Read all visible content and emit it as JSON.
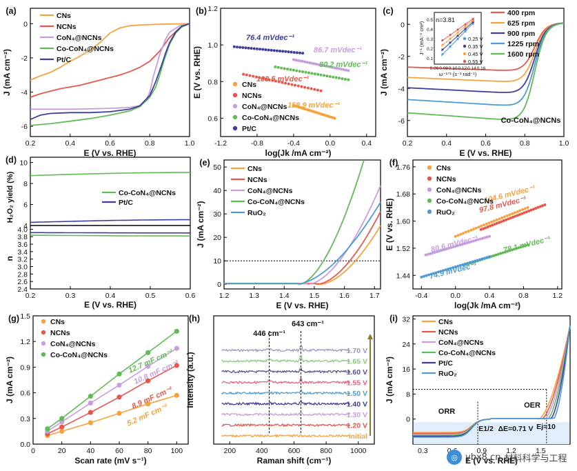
{
  "watermark": {
    "text": "ybx8.cn",
    "brand": "材料科学与工程"
  },
  "chart_data": [
    {
      "id": "a",
      "type": "line",
      "label": "(a)",
      "xlabel": "E (V vs. RHE)",
      "ylabel": "J (mA cm⁻²)",
      "xlim": [
        0.2,
        1.0
      ],
      "ylim": [
        -6.6,
        0.9
      ],
      "xticks": [
        "0.2",
        "0.4",
        "0.6",
        "0.8",
        "1.0"
      ],
      "yticks": [
        "0",
        "-2",
        "-4",
        "-6"
      ],
      "series": [
        {
          "name": "CNs",
          "color": "#f7a23b",
          "x": [
            0.2,
            0.25,
            0.3,
            0.35,
            0.4,
            0.45,
            0.5,
            0.55,
            0.6,
            0.65,
            0.7,
            0.75,
            0.8,
            0.85,
            0.9,
            0.95,
            1.0
          ],
          "y": [
            -3.3,
            -3.05,
            -2.85,
            -2.55,
            -2.2,
            -1.9,
            -1.55,
            -1.1,
            -0.55,
            -0.25,
            -0.12,
            -0.08,
            -0.05,
            -0.03,
            -0.02,
            -0.01,
            0
          ]
        },
        {
          "name": "NCNs",
          "color": "#e8564a",
          "x": [
            0.2,
            0.25,
            0.3,
            0.35,
            0.4,
            0.45,
            0.5,
            0.55,
            0.6,
            0.65,
            0.7,
            0.75,
            0.8,
            0.85,
            0.9,
            0.95,
            1.0
          ],
          "y": [
            -4.3,
            -4.1,
            -3.95,
            -3.8,
            -3.7,
            -3.6,
            -3.45,
            -3.3,
            -3.15,
            -3.0,
            -2.8,
            -2.55,
            -2.2,
            -1.6,
            -0.8,
            -0.25,
            0
          ]
        },
        {
          "name": "CoN₄@NCNs",
          "color": "#c69ee0",
          "x": [
            0.2,
            0.3,
            0.4,
            0.5,
            0.6,
            0.7,
            0.75,
            0.78,
            0.8,
            0.82,
            0.85,
            0.88,
            0.9,
            0.95,
            1.0
          ],
          "y": [
            -5.0,
            -5.0,
            -5.0,
            -4.98,
            -4.95,
            -4.9,
            -4.8,
            -4.5,
            -4.0,
            -3.0,
            -1.8,
            -0.9,
            -0.5,
            -0.12,
            0
          ]
        },
        {
          "name": "Co-CoN₄@NCNs",
          "color": "#61bb55",
          "x": [
            0.2,
            0.3,
            0.4,
            0.5,
            0.6,
            0.7,
            0.75,
            0.8,
            0.83,
            0.85,
            0.87,
            0.9,
            0.93,
            0.96,
            1.0
          ],
          "y": [
            -5.95,
            -5.85,
            -5.7,
            -5.55,
            -5.35,
            -5.1,
            -4.85,
            -4.3,
            -3.7,
            -3.0,
            -2.2,
            -1.2,
            -0.55,
            -0.2,
            0
          ]
        },
        {
          "name": "Pt/C",
          "color": "#3d3d9c",
          "x": [
            0.2,
            0.25,
            0.3,
            0.4,
            0.5,
            0.6,
            0.7,
            0.75,
            0.8,
            0.83,
            0.86,
            0.88,
            0.9,
            0.93,
            0.96,
            1.0
          ],
          "y": [
            -5.6,
            -5.35,
            -5.25,
            -5.2,
            -5.2,
            -5.15,
            -5.0,
            -4.8,
            -4.2,
            -3.4,
            -2.4,
            -1.7,
            -1.1,
            -0.5,
            -0.15,
            0
          ]
        }
      ]
    },
    {
      "id": "b",
      "type": "scatter",
      "label": "(b)",
      "xlabel": "log(Jk /mA cm⁻²)",
      "ylabel": "E (V vs. RHE)",
      "xlim": [
        -1.2,
        0.5
      ],
      "ylim": [
        0.5,
        1.2
      ],
      "xticks": [
        "-1.2",
        "-0.8",
        "-0.4",
        "0.0",
        "0.4"
      ],
      "yticks": [
        "0.6",
        "0.8",
        "1.0",
        "1.2"
      ],
      "series": [
        {
          "name": "CNs",
          "color": "#f7a23b",
          "slope_label": "158.9 mVdec⁻¹",
          "x0": -0.4,
          "x1": 0.05,
          "y0": 0.67,
          "y1": 0.6
        },
        {
          "name": "NCNs",
          "color": "#e8564a",
          "slope_label": "103.5 mVdec⁻¹",
          "x0": -0.95,
          "x1": -0.1,
          "y0": 0.84,
          "y1": 0.75
        },
        {
          "name": "CoN₄@NCNs",
          "color": "#c69ee0",
          "slope_label": "86.7 mVdec⁻¹",
          "x0": -0.4,
          "x1": 0.2,
          "y0": 0.92,
          "y1": 0.86
        },
        {
          "name": "Co-CoN₄@NCNs",
          "color": "#61bb55",
          "slope_label": "80.2 mVdec⁻¹",
          "x0": -0.6,
          "x1": 0.2,
          "y0": 0.88,
          "y1": 0.81
        },
        {
          "name": "Pt/C",
          "color": "#3d3d9c",
          "slope_label": "76.4 mVdec⁻¹",
          "x0": -1.05,
          "x1": -0.3,
          "y0": 0.99,
          "y1": 0.955
        }
      ],
      "legend": [
        "CNs",
        "NCNs",
        "CoN₄@NCNs",
        "Co-CoN₄@NCNs",
        "Pt/C"
      ]
    },
    {
      "id": "c",
      "type": "line",
      "label": "(c)",
      "xlabel": "E (V vs. RHE)",
      "ylabel": "J (mA cm⁻²)",
      "xlim": [
        0.2,
        1.0
      ],
      "ylim": [
        -7,
        1
      ],
      "xticks": [
        "0.2",
        "0.4",
        "0.6",
        "0.8",
        "1.0"
      ],
      "yticks": [
        "0",
        "-2",
        "-4",
        "-6"
      ],
      "annotation": "Co-CoN₄@NCNs",
      "series": [
        {
          "name": "400 rpm",
          "color": "#e8564a",
          "plateau": -2.9
        },
        {
          "name": "625 rpm",
          "color": "#f7a23b",
          "plateau": -3.6
        },
        {
          "name": "900 rpm",
          "color": "#3d3d9c",
          "plateau": -4.3
        },
        {
          "name": "1225 rpm",
          "color": "#4f9ad6",
          "plateau": -5.1
        },
        {
          "name": "1600 rpm",
          "color": "#61bb55",
          "plateau": -6.0
        }
      ],
      "inset": {
        "n_label": "n=3.81",
        "xlabel": "ω⁻¹ᐟ² (s⁻¹ rad⁻¹)",
        "ylabel": "J⁻¹ (mA⁻¹ cm²)",
        "xticks": [
          "0.06",
          "0.08",
          "0.10",
          "0.12",
          "0.14",
          "0.16"
        ],
        "yticks": [
          "0.1",
          "0.2",
          "0.3",
          "0.4",
          "0.5"
        ],
        "legend": [
          {
            "name": "0.25 V",
            "color": "#4f9ad6"
          },
          {
            "name": "0.35 V",
            "color": "#3d3d9c"
          },
          {
            "name": "0.45 V",
            "color": "#f7a23b"
          },
          {
            "name": "0.55 V",
            "color": "#e8564a"
          }
        ]
      }
    },
    {
      "id": "d",
      "type": "line",
      "label": "(d)",
      "xlabel": "E (V vs. RHE)",
      "ylabel_top": "H₂O₂ yield (%)",
      "ylabel_bottom": "n",
      "xlim": [
        0.2,
        0.6
      ],
      "xticks": [
        "0.2",
        "0.3",
        "0.4",
        "0.5",
        "0.6"
      ],
      "top": {
        "ylim": [
          4,
          10.5
        ],
        "yticks": [
          "10",
          "8",
          "6",
          "4"
        ],
        "series": [
          {
            "name": "Co-CoN₄@NCNs",
            "color": "#61bb55",
            "y_start": 8.75,
            "y_end": 9.05
          },
          {
            "name": "Pt/C",
            "color": "#3d3d9c",
            "y_start": 4.3,
            "y_end": 4.55
          }
        ]
      },
      "bottom": {
        "ylim": [
          2.4,
          4.1
        ],
        "yticks": [
          "4.0",
          "3.8",
          "3.6",
          "3.4",
          "3.2",
          "3.0",
          "2.8",
          "2.6",
          "2.4"
        ],
        "series": [
          {
            "name": "Pt/C",
            "color": "#3d3d9c",
            "y_start": 3.91,
            "y_end": 3.9
          },
          {
            "name": "Co-CoN₄@NCNs",
            "color": "#61bb55",
            "y_start": 3.84,
            "y_end": 3.82
          }
        ]
      }
    },
    {
      "id": "e",
      "type": "line",
      "label": "(e)",
      "xlabel": "E (V vs. RHE)",
      "ylabel": "J (mA cm⁻²)",
      "xlim": [
        1.2,
        1.72
      ],
      "ylim": [
        -2,
        53
      ],
      "xticks": [
        "1.2",
        "1.3",
        "1.4",
        "1.5",
        "1.6",
        "1.7"
      ],
      "yticks": [
        "0",
        "10",
        "20",
        "30",
        "40",
        "50"
      ],
      "ref_line": 10,
      "series": [
        {
          "name": "CNs",
          "color": "#f7a23b",
          "onset": 1.52,
          "end": [
            1.72,
            25
          ]
        },
        {
          "name": "NCNs",
          "color": "#e8564a",
          "onset": 1.51,
          "end": [
            1.72,
            31
          ]
        },
        {
          "name": "CoN₄@NCNs",
          "color": "#c69ee0",
          "onset": 1.48,
          "end": [
            1.72,
            42
          ]
        },
        {
          "name": "Co-CoN₄@NCNs",
          "color": "#61bb55",
          "onset": 1.45,
          "end": [
            1.665,
            53
          ]
        },
        {
          "name": "RuO₂",
          "color": "#4f9ad6",
          "onset": 1.44,
          "end": [
            1.72,
            35
          ]
        }
      ]
    },
    {
      "id": "f",
      "type": "scatter",
      "label": "(f)",
      "xlabel": "log(Jk /mA cm⁻²)",
      "ylabel": "E (V vs. RHE)",
      "xlim": [
        -0.5,
        1.25
      ],
      "ylim": [
        1.4,
        1.78
      ],
      "xticks": [
        "-0.4",
        "0.0",
        "0.4",
        "0.8",
        "1.2"
      ],
      "yticks": [
        "1.44",
        "1.52",
        "1.60",
        "1.68",
        "1.76"
      ],
      "series": [
        {
          "name": "CNs",
          "color": "#f7a23b",
          "slope_label": "104.6 mVdec⁻¹",
          "x0": 0.0,
          "x1": 0.85,
          "y0": 1.555,
          "y1": 1.64
        },
        {
          "name": "NCNs",
          "color": "#e8564a",
          "slope_label": "97.8 mVdec⁻¹",
          "x0": 0.3,
          "x1": 1.05,
          "y0": 1.575,
          "y1": 1.648
        },
        {
          "name": "CoN₄@NCNs",
          "color": "#c69ee0",
          "slope_label": "80.6 mVdec⁻¹",
          "x0": -0.35,
          "x1": 0.4,
          "y0": 1.5,
          "y1": 1.555
        },
        {
          "name": "Co-CoN₄@NCNs",
          "color": "#61bb55",
          "slope_label": "78.1 mVdec⁻¹",
          "x0": 0.1,
          "x1": 0.85,
          "y0": 1.47,
          "y1": 1.53
        },
        {
          "name": "RuO₂",
          "color": "#4f9ad6",
          "slope_label": "74.9 mVdec⁻¹",
          "x0": -0.4,
          "x1": 0.4,
          "y0": 1.435,
          "y1": 1.495
        }
      ]
    },
    {
      "id": "g",
      "type": "scatter",
      "label": "(g)",
      "xlabel": "Scan rate (mV s⁻¹)",
      "ylabel": "J (mA cm⁻²)",
      "xlim": [
        0,
        108
      ],
      "ylim": [
        0,
        1.5
      ],
      "xticks": [
        "0",
        "20",
        "40",
        "60",
        "80",
        "100"
      ],
      "yticks": [
        "0.0",
        "0.3",
        "0.6",
        "0.9",
        "1.2",
        "1.5"
      ],
      "x": [
        10,
        20,
        40,
        60,
        80,
        100
      ],
      "series": [
        {
          "name": "CNs",
          "color": "#f7a23b",
          "slope_label": "5.2 mF cm⁻²",
          "values": [
            0.1,
            0.15,
            0.25,
            0.36,
            0.47,
            0.57
          ]
        },
        {
          "name": "NCNs",
          "color": "#e8564a",
          "slope_label": "8.9 mF cm⁻²",
          "values": [
            0.12,
            0.2,
            0.37,
            0.55,
            0.74,
            0.92
          ]
        },
        {
          "name": "CoN₄@NCNs",
          "color": "#c69ee0",
          "slope_label": "10.8 mF cm⁻²",
          "values": [
            0.15,
            0.26,
            0.48,
            0.69,
            0.91,
            1.12
          ]
        },
        {
          "name": "Co-CoN₄@NCNs",
          "color": "#61bb55",
          "slope_label": "12.7 mF cm⁻²",
          "values": [
            0.18,
            0.3,
            0.56,
            0.82,
            1.07,
            1.32
          ]
        }
      ]
    },
    {
      "id": "h",
      "type": "line",
      "label": "(h)",
      "xlabel": "Raman shift (cm⁻¹)",
      "ylabel": "Intensity (a.u.)",
      "xlim": [
        100,
        1100
      ],
      "xticks": [
        "200",
        "400",
        "600",
        "800",
        "1000"
      ],
      "peaks": [
        {
          "pos": 446,
          "label": "446 cm⁻¹"
        },
        {
          "pos": 643,
          "label": "643 cm⁻¹"
        }
      ],
      "series": [
        {
          "name": "1.70 V",
          "color": "#9b93c9"
        },
        {
          "name": "1.65 V",
          "color": "#8cc77e"
        },
        {
          "name": "1.60 V",
          "color": "#5a4f8e"
        },
        {
          "name": "1.55 V",
          "color": "#e6617e"
        },
        {
          "name": "1.50 V",
          "color": "#4f9ad6"
        },
        {
          "name": "1.40 V",
          "color": "#3d3d9c"
        },
        {
          "name": "1.30 V",
          "color": "#c69ee0"
        },
        {
          "name": "1.20 V",
          "color": "#e8564a"
        },
        {
          "name": "initial",
          "color": "#f7a23b"
        }
      ]
    },
    {
      "id": "i",
      "type": "line",
      "label": "(i)",
      "xlabel": "E (V vs. RHE)",
      "ylabel": "J (mA cm⁻²)",
      "xlim": [
        0.2,
        1.8
      ],
      "ylim": [
        -8,
        33
      ],
      "xticks": [
        "0.3",
        "0.6",
        "0.9",
        "1.2",
        "1.5"
      ],
      "yticks": [
        "0",
        "8",
        "16",
        "24",
        "32"
      ],
      "annotations": {
        "orr": "ORR",
        "oer": "OER",
        "e_half": "E1/2",
        "delta": "ΔE=0.71 V",
        "e_j": "Ej=10"
      },
      "series": [
        {
          "name": "CNs",
          "color": "#f7a23b"
        },
        {
          "name": "NCNs",
          "color": "#e8564a"
        },
        {
          "name": "CoN₄@NCNs",
          "color": "#c69ee0"
        },
        {
          "name": "Co-CoN₄@NCNs",
          "color": "#61bb55"
        },
        {
          "name": "Pt/C",
          "color": "#3d3d9c"
        },
        {
          "name": "RuO₂",
          "color": "#4f9ad6"
        }
      ]
    }
  ]
}
